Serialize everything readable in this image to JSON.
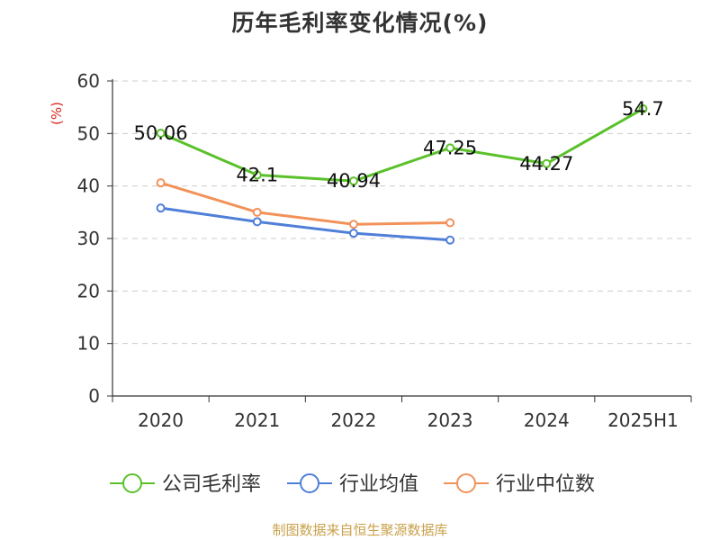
{
  "chart_data": {
    "type": "line",
    "title": "历年毛利率变化情况(%)",
    "ylabel": "(%)",
    "xlabel": "",
    "categories": [
      "2020",
      "2021",
      "2022",
      "2023",
      "2024",
      "2025H1"
    ],
    "ylim": [
      0,
      60
    ],
    "yticks": [
      0,
      10,
      20,
      30,
      40,
      50,
      60
    ],
    "grid": true,
    "legend_position": "bottom",
    "series": [
      {
        "name": "公司毛利率",
        "color": "#5ac12a",
        "values": [
          50.06,
          42.1,
          40.94,
          47.25,
          44.27,
          54.7
        ],
        "labels": [
          "50.06",
          "42.1",
          "40.94",
          "47.25",
          "44.27",
          "54.7"
        ]
      },
      {
        "name": "行业均值",
        "color": "#4f7fd8",
        "values": [
          35.8,
          33.2,
          31.0,
          29.7,
          null,
          null
        ]
      },
      {
        "name": "行业中位数",
        "color": "#f2925a",
        "values": [
          40.6,
          35.0,
          32.7,
          33.0,
          null,
          null
        ]
      }
    ]
  },
  "source_note": "制图数据来自恒生聚源数据库"
}
